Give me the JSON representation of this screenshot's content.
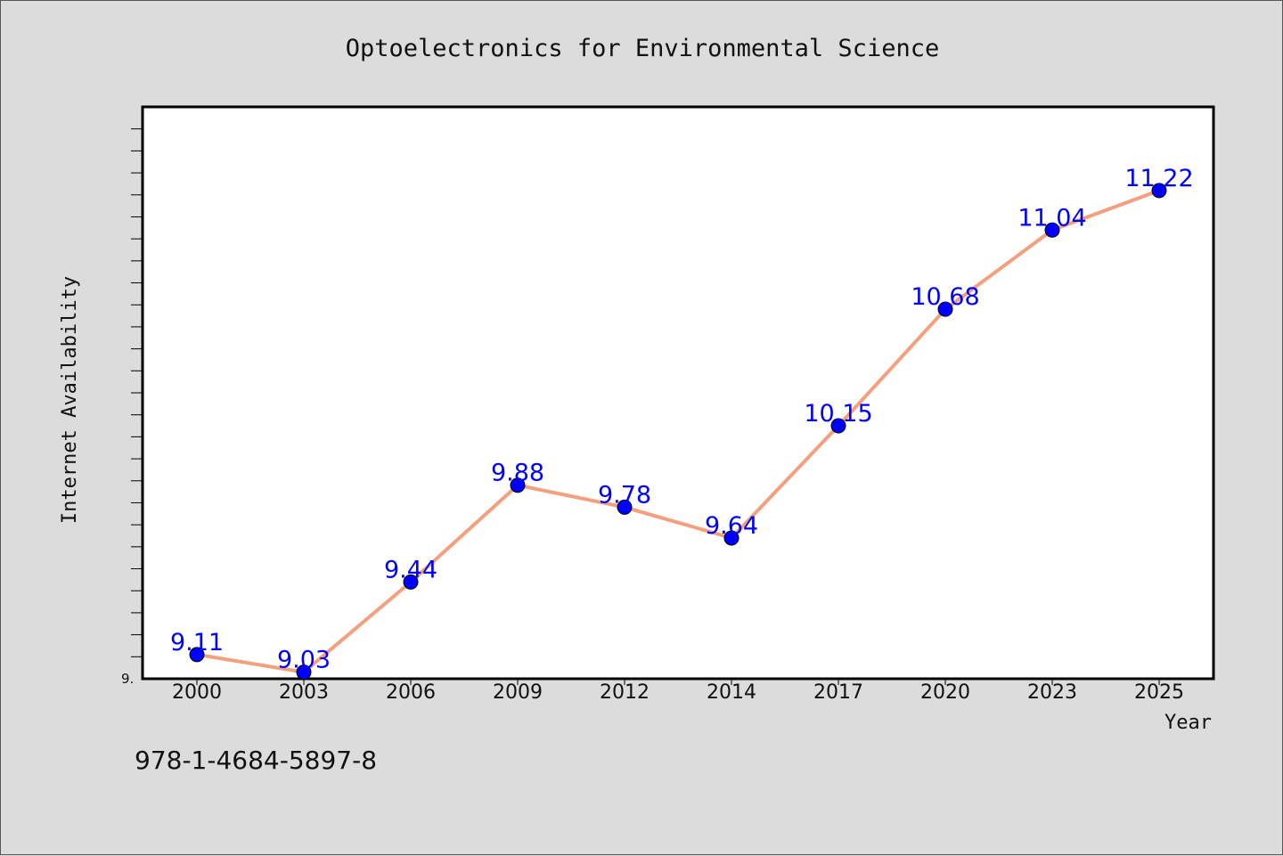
{
  "chart_data": {
    "type": "line",
    "title": "Optoelectronics for Environmental Science",
    "xlabel": "Year",
    "ylabel": "Internet Availability",
    "categories": [
      "2000",
      "2003",
      "2006",
      "2009",
      "2012",
      "2014",
      "2017",
      "2020",
      "2023",
      "2025"
    ],
    "series": [
      {
        "values": [
          9.11,
          9.03,
          9.44,
          9.88,
          9.78,
          9.64,
          10.15,
          10.68,
          11.04,
          11.22
        ]
      }
    ],
    "data_labels": [
      "9.11",
      "9.03",
      "9.44",
      "9.88",
      "9.78",
      "9.64",
      "10.15",
      "10.68",
      "11.04",
      "11.22"
    ],
    "y_tick_label": "9.",
    "ylim": [
      9.0,
      11.6
    ],
    "grid": false,
    "line_color": "#f4a07e",
    "marker_color": "#0000ff",
    "label_color": "#0000ff"
  },
  "footnote": "978-1-4684-5897-8"
}
